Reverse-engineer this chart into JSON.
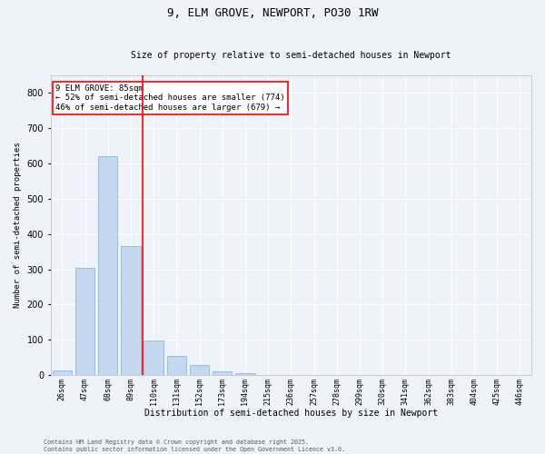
{
  "title": "9, ELM GROVE, NEWPORT, PO30 1RW",
  "subtitle": "Size of property relative to semi-detached houses in Newport",
  "xlabel": "Distribution of semi-detached houses by size in Newport",
  "ylabel": "Number of semi-detached properties",
  "categories": [
    "26sqm",
    "47sqm",
    "68sqm",
    "89sqm",
    "110sqm",
    "131sqm",
    "152sqm",
    "173sqm",
    "194sqm",
    "215sqm",
    "236sqm",
    "257sqm",
    "278sqm",
    "299sqm",
    "320sqm",
    "341sqm",
    "362sqm",
    "383sqm",
    "404sqm",
    "425sqm",
    "446sqm"
  ],
  "values": [
    12,
    305,
    620,
    365,
    97,
    55,
    28,
    10,
    5,
    0,
    0,
    0,
    0,
    0,
    0,
    0,
    0,
    0,
    0,
    0,
    0
  ],
  "bar_color": "#c5d8f0",
  "bar_edge_color": "#7bafd4",
  "vline_index": 3,
  "vline_color": "red",
  "ylim": [
    0,
    850
  ],
  "yticks": [
    0,
    100,
    200,
    300,
    400,
    500,
    600,
    700,
    800
  ],
  "bg_color": "#eef3fa",
  "grid_color": "white",
  "annotation_text": "9 ELM GROVE: 85sqm\n← 52% of semi-detached houses are smaller (774)\n46% of semi-detached houses are larger (679) →",
  "annotation_box_color": "white",
  "annotation_box_edge_color": "red",
  "footer_line1": "Contains HM Land Registry data © Crown copyright and database right 2025.",
  "footer_line2": "Contains public sector information licensed under the Open Government Licence v3.0.",
  "title_fontsize": 9,
  "subtitle_fontsize": 7,
  "ylabel_fontsize": 6.5,
  "xlabel_fontsize": 7,
  "ytick_fontsize": 7,
  "xtick_fontsize": 6,
  "annotation_fontsize": 6.5,
  "footer_fontsize": 4.8
}
